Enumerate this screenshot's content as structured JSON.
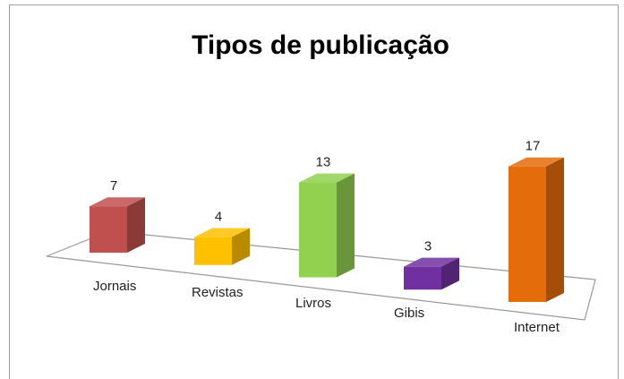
{
  "chart_data": {
    "type": "bar3d",
    "title": "Tipos de publicação",
    "categories": [
      "Jornais",
      "Revistas",
      "Livros",
      "Gibis",
      "Internet"
    ],
    "values": [
      7,
      4,
      13,
      3,
      17
    ],
    "colors": [
      "#c0504d",
      "#ffc000",
      "#92d050",
      "#7030a0",
      "#e46c0a"
    ]
  }
}
